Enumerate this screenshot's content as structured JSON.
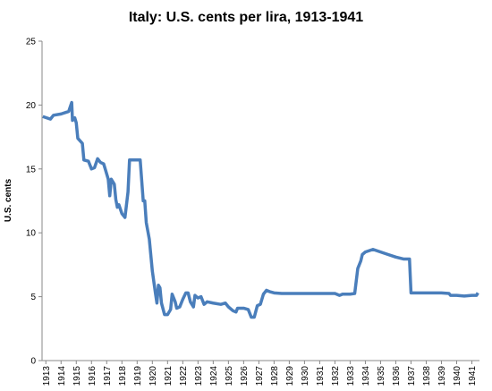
{
  "chart_data": {
    "type": "line",
    "title": "Italy: U.S. cents per lira, 1913-1941",
    "y_label": "U.S. cents",
    "color": "#4a7ebb",
    "x": [
      1912.8,
      1913.3,
      1913.5,
      1914.0,
      1914.5,
      1914.7,
      1914.75,
      1914.9,
      1915.0,
      1915.1,
      1915.4,
      1915.5,
      1915.8,
      1916.0,
      1916.2,
      1916.4,
      1916.6,
      1916.8,
      1916.9,
      1917.1,
      1917.2,
      1917.3,
      1917.5,
      1917.6,
      1917.7,
      1917.8,
      1918.0,
      1918.2,
      1918.4,
      1918.5,
      1919.0,
      1919.2,
      1919.4,
      1919.5,
      1919.6,
      1919.8,
      1920.0,
      1920.2,
      1920.3,
      1920.4,
      1920.5,
      1920.6,
      1920.8,
      1921.0,
      1921.2,
      1921.3,
      1921.5,
      1921.6,
      1921.8,
      1922.0,
      1922.2,
      1922.35,
      1922.5,
      1922.7,
      1922.8,
      1923.0,
      1923.2,
      1923.4,
      1923.6,
      1924.0,
      1924.5,
      1924.8,
      1925.0,
      1925.3,
      1925.5,
      1925.6,
      1926.0,
      1926.3,
      1926.5,
      1926.7,
      1926.9,
      1927.1,
      1927.3,
      1927.5,
      1927.7,
      1928.0,
      1928.5,
      1930.0,
      1932.0,
      1932.3,
      1932.5,
      1933.0,
      1933.3,
      1933.5,
      1933.7,
      1933.8,
      1934.0,
      1934.5,
      1935.0,
      1935.5,
      1936.0,
      1936.5,
      1936.9,
      1937.0,
      1938.0,
      1939.0,
      1939.5,
      1939.6,
      1940.0,
      1940.5,
      1941.0,
      1941.3,
      1941.4
    ],
    "values": [
      19.1,
      18.9,
      19.2,
      19.3,
      19.5,
      20.2,
      18.8,
      19.0,
      18.6,
      17.4,
      17.0,
      15.7,
      15.6,
      15.0,
      15.1,
      15.8,
      15.5,
      15.4,
      15.0,
      14.2,
      12.9,
      14.2,
      13.8,
      12.6,
      12.0,
      12.2,
      11.5,
      11.2,
      13.2,
      15.7,
      15.7,
      15.7,
      12.5,
      12.5,
      10.8,
      9.5,
      7.0,
      5.3,
      4.5,
      5.9,
      5.7,
      4.5,
      3.6,
      3.6,
      4.0,
      5.2,
      4.6,
      4.1,
      4.2,
      4.8,
      5.3,
      5.3,
      4.6,
      4.2,
      5.1,
      4.9,
      5.0,
      4.4,
      4.6,
      4.5,
      4.4,
      4.5,
      4.2,
      3.9,
      3.8,
      4.1,
      4.1,
      4.0,
      3.4,
      3.4,
      4.3,
      4.4,
      5.2,
      5.5,
      5.4,
      5.3,
      5.25,
      5.25,
      5.25,
      5.1,
      5.2,
      5.2,
      5.25,
      7.2,
      7.8,
      8.3,
      8.5,
      8.7,
      8.5,
      8.3,
      8.1,
      7.95,
      7.95,
      5.3,
      5.3,
      5.3,
      5.25,
      5.1,
      5.1,
      5.05,
      5.1,
      5.1,
      5.3
    ],
    "xlim": [
      1912.75,
      1941.5
    ],
    "ylim": [
      0,
      25
    ],
    "xticks": [
      1913,
      1914,
      1915,
      1916,
      1917,
      1918,
      1919,
      1920,
      1921,
      1922,
      1923,
      1924,
      1925,
      1926,
      1927,
      1928,
      1929,
      1930,
      1931,
      1932,
      1933,
      1934,
      1935,
      1936,
      1937,
      1938,
      1939,
      1940,
      1941
    ],
    "yticks": [
      0,
      5,
      10,
      15,
      20,
      25
    ],
    "grid": false
  }
}
